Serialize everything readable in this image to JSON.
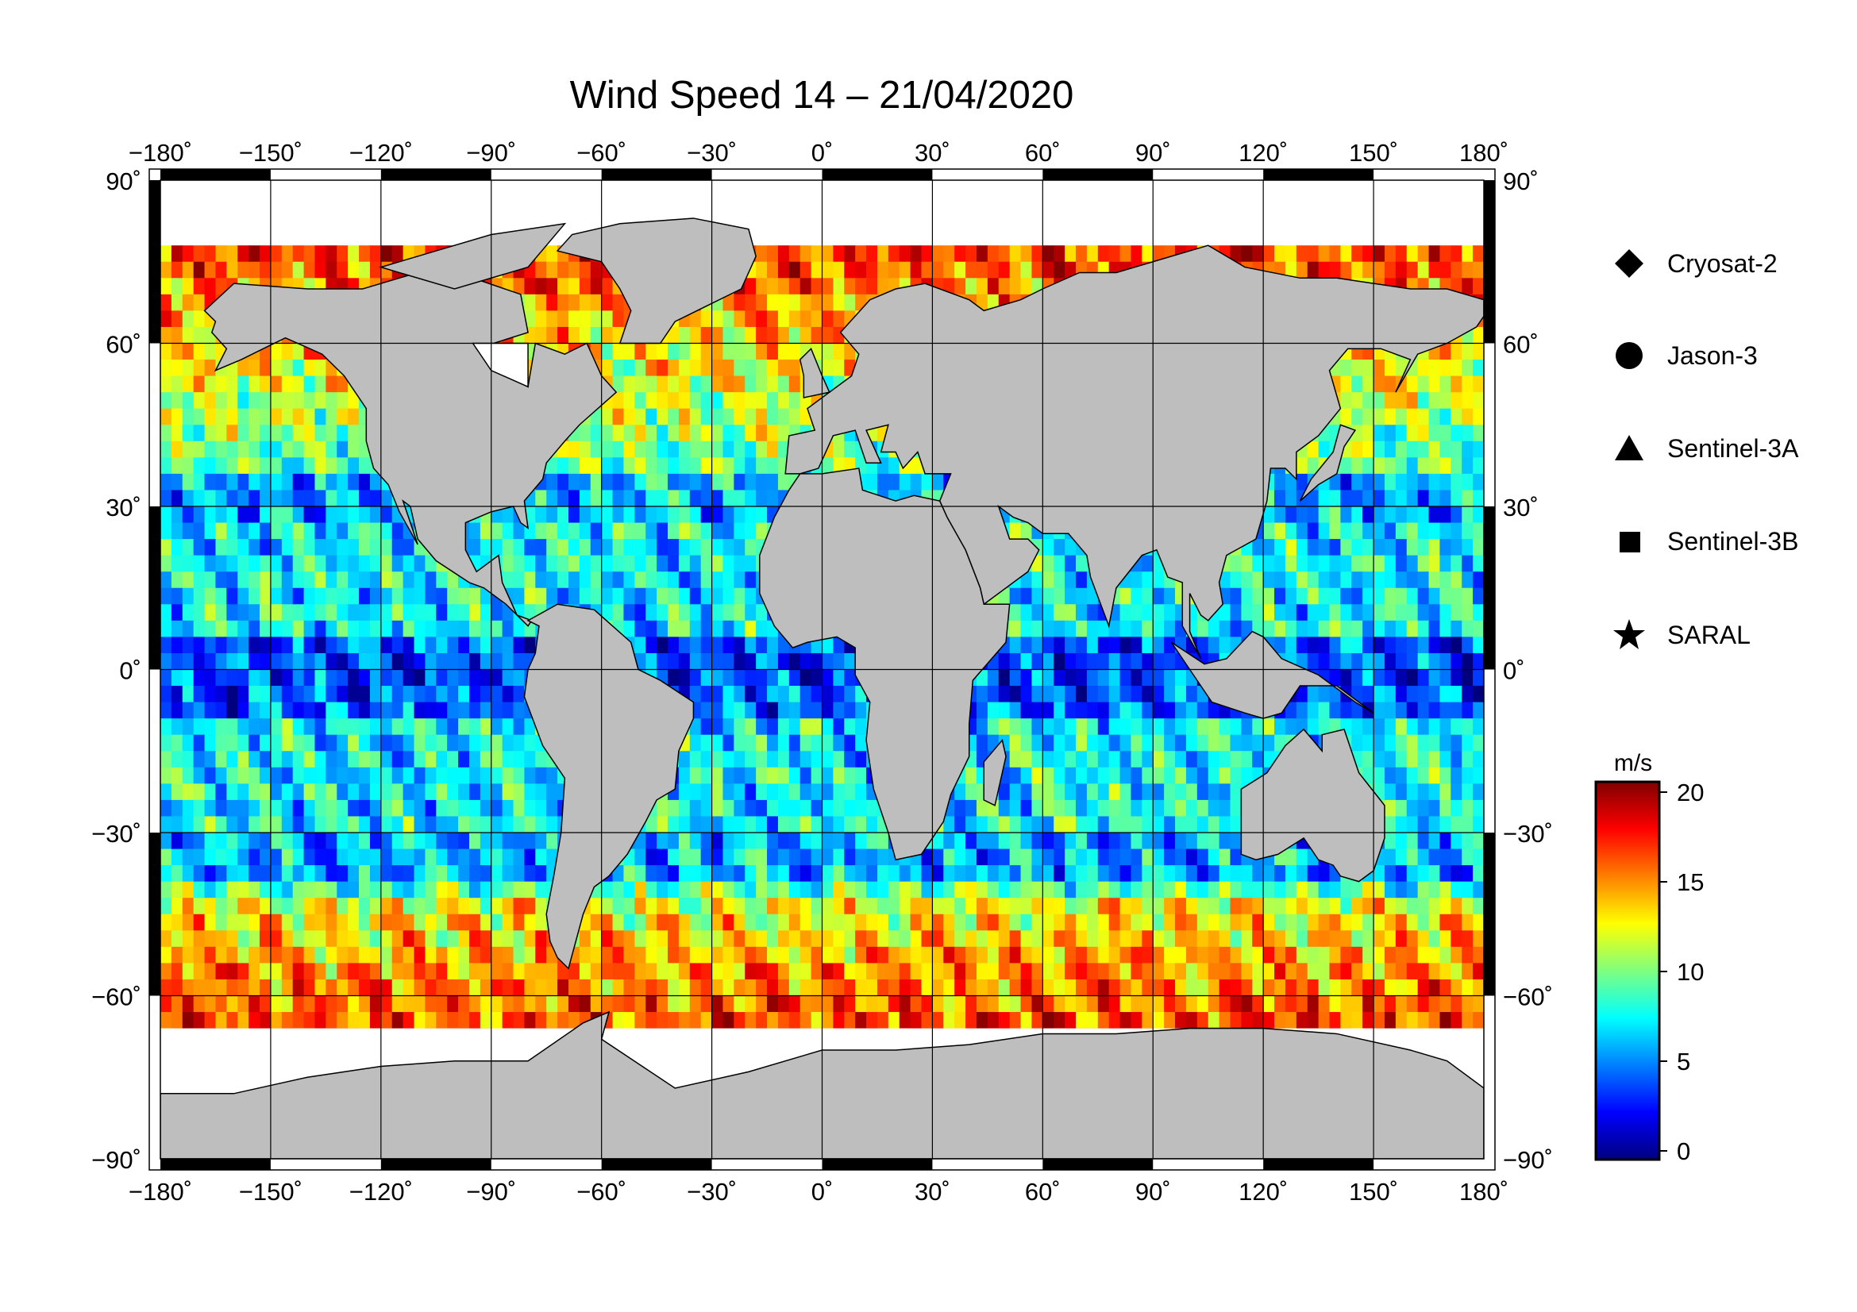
{
  "title": "Wind Speed 14 – 21/04/2020",
  "axes": {
    "x_ticks": [
      "−180˚",
      "−150˚",
      "−120˚",
      "−90˚",
      "−60˚",
      "−30˚",
      "0˚",
      "30˚",
      "60˚",
      "90˚",
      "120˚",
      "150˚",
      "180˚"
    ],
    "y_ticks": [
      "90˚",
      "60˚",
      "30˚",
      "0˚",
      "−30˚",
      "−60˚",
      "−90˚"
    ]
  },
  "legend": [
    {
      "label": "Cryosat-2",
      "symbol": "diamond"
    },
    {
      "label": "Jason-3",
      "symbol": "circle"
    },
    {
      "label": "Sentinel-3A",
      "symbol": "triangle"
    },
    {
      "label": "Sentinel-3B",
      "symbol": "square"
    },
    {
      "label": "SARAL",
      "symbol": "star"
    }
  ],
  "colorbar": {
    "unit": "m/s",
    "ticks": [
      "20",
      "15",
      "10",
      "5",
      "0"
    ],
    "range": [
      0,
      20
    ],
    "colors": [
      "#00007f",
      "#0000ff",
      "#007fff",
      "#00ffff",
      "#7fff7f",
      "#ffff00",
      "#ff7f00",
      "#ff0000",
      "#7f0000"
    ]
  },
  "map": {
    "lon_range": [
      -180,
      180
    ],
    "lat_range": [
      -90,
      90
    ],
    "land_color": "#bebebe",
    "ice_color": "#ffffff"
  }
}
